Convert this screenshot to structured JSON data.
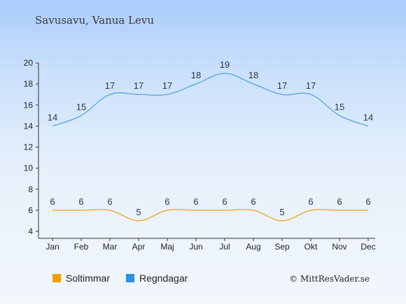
{
  "header": {
    "location": "Savusavu, Vanua Levu"
  },
  "legend": {
    "items": [
      {
        "label": "Soltimmar",
        "color": "#f59e0b"
      },
      {
        "label": "Regndagar",
        "color": "#2f8ee5"
      }
    ]
  },
  "copyright": "© MittResVader.se",
  "chart_data": {
    "type": "line",
    "categories": [
      "Jan",
      "Feb",
      "Mar",
      "Apr",
      "Maj",
      "Jun",
      "Jul",
      "Aug",
      "Sep",
      "Okt",
      "Nov",
      "Dec"
    ],
    "series": [
      {
        "name": "Soltimmar",
        "color": "#f59e0b",
        "values": [
          6,
          6,
          6,
          5,
          6,
          6,
          6,
          6,
          5,
          6,
          6,
          6
        ]
      },
      {
        "name": "Regndagar",
        "color": "#4a9fe0",
        "values": [
          14,
          15,
          17,
          17,
          17,
          18,
          19,
          18,
          17,
          17,
          15,
          14
        ]
      }
    ],
    "yticks": [
      4,
      6,
      8,
      10,
      12,
      14,
      16,
      18,
      20
    ],
    "ylim": [
      4,
      20
    ],
    "grid": false,
    "legend_position": "bottom-left"
  }
}
